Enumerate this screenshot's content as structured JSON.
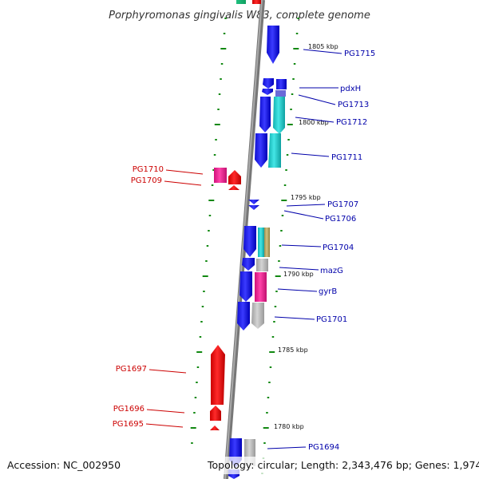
{
  "title": "Porphyromonas gingivalis W83, complete genome",
  "footer": {
    "accession": "Accession: NC_002950",
    "topology": "Topology: circular; Length: 2,343,476 bp; Genes: 1,974"
  },
  "colors": {
    "forward_label": "#0000aa",
    "reverse_label": "#cc0000",
    "blue": "#0a0af0",
    "red": "#ee0000",
    "cyan": "#22cccc",
    "magenta": "#ee2299",
    "gray": "#bbbbbb",
    "olive": "#bbaa66",
    "green_tick": "#118811",
    "backbone": "#888888"
  },
  "kbp_marks": [
    "1805 kbp",
    "1800 kbp",
    "1795 kbp",
    "1790 kbp",
    "1785 kbp",
    "1780 kbp"
  ],
  "gene_labels": {
    "forward": [
      "PG1715",
      "pdxH",
      "PG1713",
      "PG1712",
      "PG1711",
      "PG1707",
      "PG1706",
      "PG1704",
      "mazG",
      "gyrB",
      "PG1701",
      "PG1694"
    ],
    "reverse": [
      "PG1710",
      "PG1709",
      "PG1697",
      "PG1696",
      "PG1695"
    ]
  }
}
